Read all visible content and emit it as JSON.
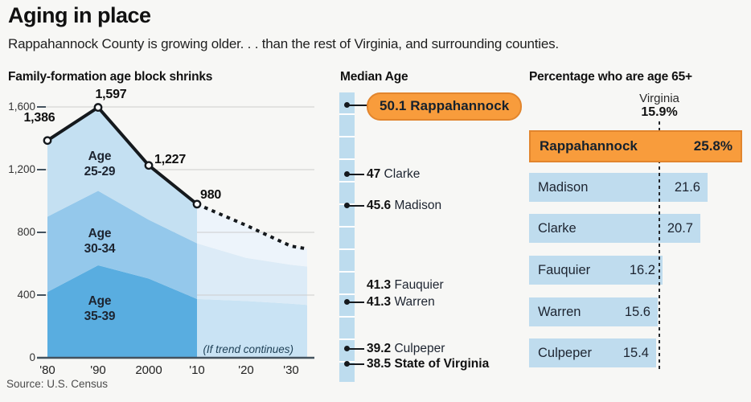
{
  "header": {
    "title": "Aging in place",
    "subtitle": "Rappahannock County is growing older. . . than the rest of Virginia, and surrounding counties."
  },
  "footer": {
    "source": "Source: U.S. Census"
  },
  "colors": {
    "orange": "#F89C3C",
    "orange_border": "#E2852D",
    "bar_blue": "#BFDCEE",
    "scale_blue": "#BDDCEE",
    "band_25_29": "#C4E0F2",
    "band_30_34": "#94C8EB",
    "band_35_39": "#59ADE0",
    "proj_25_29": "#EDF4FB",
    "proj_30_34": "#DCEBF7",
    "proj_35_39": "#C9E3F4",
    "gridline": "#CCCCCC",
    "axis": "#44525E",
    "ink": "#15191d"
  },
  "chart_data": [
    {
      "type": "area",
      "title": "Family-formation age block shrinks",
      "x": [
        1980,
        1990,
        2000,
        2010
      ],
      "x_tick_values": [
        1980,
        1990,
        2000,
        2010,
        2020,
        2030
      ],
      "x_tick_labels": [
        "'80",
        "'90",
        "2000",
        "'10",
        "'20",
        "'30"
      ],
      "y_ticks": [
        0,
        400,
        800,
        1200,
        1600
      ],
      "y_tick_labels": [
        "0",
        "400",
        "800",
        "1,200",
        "1,600"
      ],
      "ylim": [
        0,
        1700
      ],
      "totals": [
        1386,
        1597,
        1227,
        980
      ],
      "total_labels": [
        "1,386",
        "1,597",
        "1,227",
        "980"
      ],
      "series": [
        {
          "name": "Age 35-39",
          "cumulative": [
            420,
            590,
            505,
            375
          ]
        },
        {
          "name": "Age 30-34",
          "cumulative": [
            900,
            1065,
            880,
            730
          ]
        },
        {
          "name": "Age 25-29",
          "cumulative": [
            1386,
            1597,
            1227,
            980
          ]
        }
      ],
      "band_labels": [
        {
          "lines": [
            "Age",
            "25-29"
          ]
        },
        {
          "lines": [
            "Age",
            "30-34"
          ]
        },
        {
          "lines": [
            "Age",
            "35-39"
          ]
        }
      ],
      "projection": {
        "x": [
          2010,
          2020,
          2030,
          2033
        ],
        "totals": [
          980,
          845,
          712,
          695
        ],
        "cum_30_34": [
          730,
          637,
          593,
          582
        ],
        "cum_35_39": [
          375,
          362,
          345,
          337
        ],
        "note": "(If trend continues)"
      }
    },
    {
      "type": "dot-scale",
      "title": "Median Age",
      "scale_top_value": 50.1,
      "scale_bottom_value": 38.5,
      "items": [
        {
          "value_label": "50.1",
          "name": "Rappahannock",
          "value": 50.1,
          "dot": true,
          "highlight": true
        },
        {
          "value_label": "47",
          "name": "Clarke",
          "value": 47.0,
          "dot": true
        },
        {
          "value_label": "45.6",
          "name": "Madison",
          "value": 45.6,
          "dot": true
        },
        {
          "value_label": "41.3",
          "name": "Fauquier",
          "value": 41.3,
          "dot": false
        },
        {
          "value_label": "41.3",
          "name": "Warren",
          "value": 41.3,
          "dot": true
        },
        {
          "value_label": "39.2",
          "name": "Culpeper",
          "value": 39.2,
          "dot": true
        },
        {
          "value_label": "38.5",
          "name": "State of Virginia",
          "value": 38.5,
          "dot": true,
          "bold": true
        }
      ]
    },
    {
      "type": "bar",
      "title": "Percentage who are age 65+",
      "reference": {
        "label": "Virginia",
        "value_label": "15.9%",
        "value": 15.9
      },
      "categories": [
        "Rappahannock",
        "Madison",
        "Clarke",
        "Fauquier",
        "Warren",
        "Culpeper"
      ],
      "values": [
        25.8,
        21.6,
        20.7,
        16.2,
        15.6,
        15.4
      ],
      "value_labels": [
        "25.8%",
        "21.6",
        "20.7",
        "16.2",
        "15.6",
        "15.4"
      ],
      "highlight_index": 0,
      "xmax": 25.8
    }
  ]
}
